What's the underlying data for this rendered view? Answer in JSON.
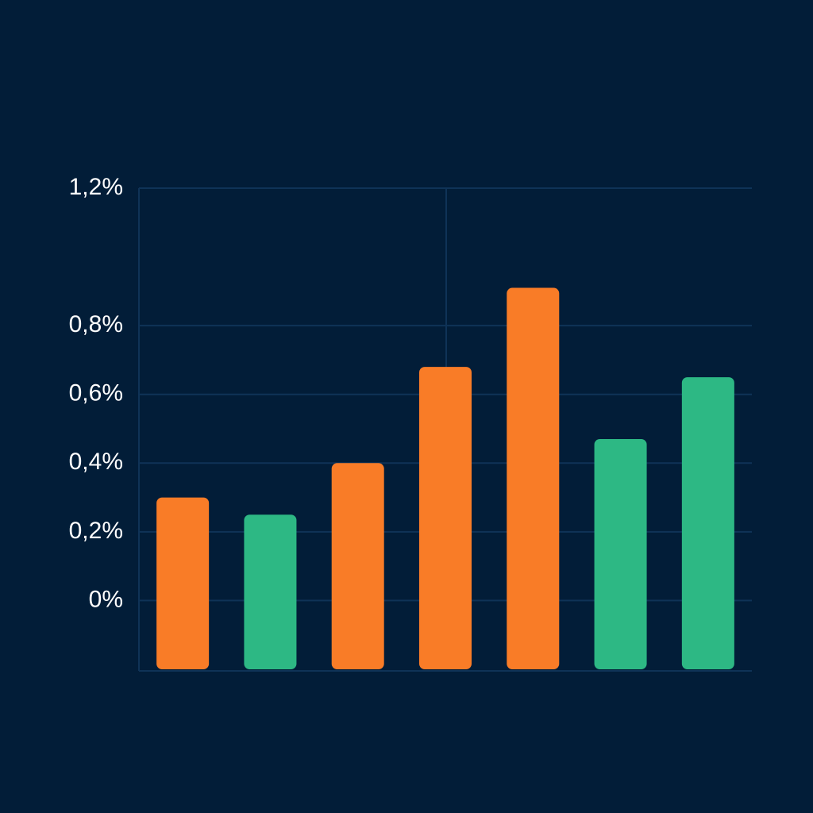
{
  "chart_data": {
    "type": "bar",
    "categories": [
      null,
      null,
      null,
      null,
      null,
      null,
      null
    ],
    "values": [
      0.3,
      0.25,
      0.4,
      0.68,
      0.91,
      0.47,
      0.65
    ],
    "colors": [
      "#f97c27",
      "#2db884",
      "#f97c27",
      "#f97c27",
      "#f97c27",
      "#2db884",
      "#2db884"
    ],
    "ylim": [
      -0.2,
      1.2
    ],
    "yticks": [
      {
        "value": 0,
        "label": "0%"
      },
      {
        "value": 0.2,
        "label": "0,2%"
      },
      {
        "value": 0.4,
        "label": "0,4%"
      },
      {
        "value": 0.6,
        "label": "0,6%"
      },
      {
        "value": 0.8,
        "label": "0,8%"
      },
      {
        "value": 1.2,
        "label": "1,2%"
      }
    ],
    "grid": true
  }
}
